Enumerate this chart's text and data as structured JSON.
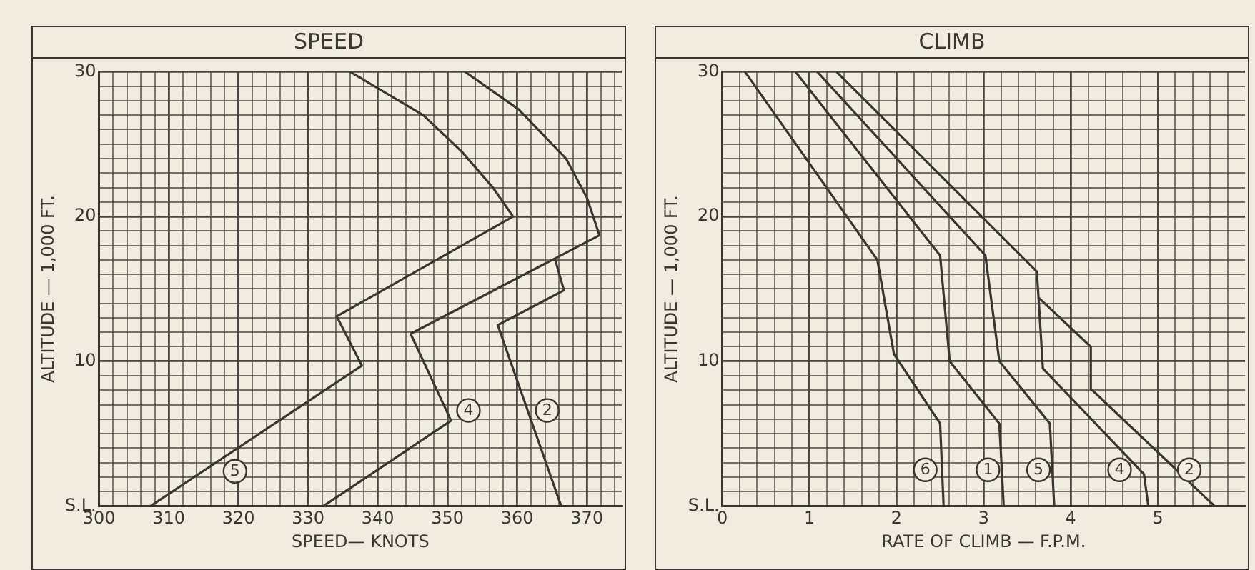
{
  "chart_data": [
    {
      "type": "line",
      "title": "SPEED",
      "xlabel": "SPEED— KNOTS",
      "ylabel": "ALTITUDE — 1,000 FT.",
      "marker": "none",
      "grid": true,
      "xlim": [
        300,
        375
      ],
      "ylim": [
        0,
        30
      ],
      "xticks": [
        300,
        {
          "value": 302,
          "label": null
        },
        {
          "value": 304,
          "label": null
        },
        {
          "value": 306,
          "label": null
        },
        {
          "value": 308,
          "label": null
        },
        310,
        {
          "value": 312,
          "label": null
        },
        {
          "value": 314,
          "label": null
        },
        {
          "value": 316,
          "label": null
        },
        {
          "value": 318,
          "label": null
        },
        320,
        {
          "value": 322,
          "label": null
        },
        {
          "value": 324,
          "label": null
        },
        {
          "value": 326,
          "label": null
        },
        {
          "value": 328,
          "label": null
        },
        330,
        {
          "value": 332,
          "label": null
        },
        {
          "value": 334,
          "label": null
        },
        {
          "value": 336,
          "label": null
        },
        {
          "value": 338,
          "label": null
        },
        340,
        {
          "value": 342,
          "label": null
        },
        {
          "value": 344,
          "label": null
        },
        {
          "value": 346,
          "label": null
        },
        {
          "value": 348,
          "label": null
        },
        350,
        {
          "value": 352,
          "label": null
        },
        {
          "value": 354,
          "label": null
        },
        {
          "value": 356,
          "label": null
        },
        {
          "value": 358,
          "label": null
        },
        360,
        {
          "value": 362,
          "label": null
        },
        {
          "value": 364,
          "label": null
        },
        {
          "value": 366,
          "label": null
        },
        {
          "value": 368,
          "label": null
        },
        370,
        {
          "value": 372,
          "label": null
        },
        {
          "value": 374,
          "label": null
        }
      ],
      "yticks": [
        {
          "value": 0,
          "label": "S.L."
        },
        {
          "value": 1,
          "label": null
        },
        {
          "value": 2,
          "label": null
        },
        {
          "value": 3,
          "label": null
        },
        {
          "value": 4,
          "label": null
        },
        {
          "value": 5,
          "label": null
        },
        {
          "value": 6,
          "label": null
        },
        {
          "value": 7,
          "label": null
        },
        {
          "value": 8,
          "label": null
        },
        {
          "value": 9,
          "label": null
        },
        10,
        {
          "value": 11,
          "label": null
        },
        {
          "value": 12,
          "label": null
        },
        {
          "value": 13,
          "label": null
        },
        {
          "value": 14,
          "label": null
        },
        {
          "value": 15,
          "label": null
        },
        {
          "value": 16,
          "label": null
        },
        {
          "value": 17,
          "label": null
        },
        {
          "value": 18,
          "label": null
        },
        {
          "value": 19,
          "label": null
        },
        20,
        {
          "value": 21,
          "label": null
        },
        {
          "value": 22,
          "label": null
        },
        {
          "value": 23,
          "label": null
        },
        {
          "value": 24,
          "label": null
        },
        {
          "value": 25,
          "label": null
        },
        {
          "value": 26,
          "label": null
        },
        {
          "value": 27,
          "label": null
        },
        {
          "value": 28,
          "label": null
        },
        {
          "value": 29,
          "label": null
        },
        30
      ],
      "series": [
        {
          "color": "#3a3530",
          "x": [
            307.4,
            337.7,
            334.1,
            359.4,
            356.5,
            352,
            346.5,
            336
          ],
          "values": [
            0,
            9.7,
            13.1,
            20,
            22,
            24.5,
            27,
            30
          ]
        },
        {
          "color": "#3a3530",
          "x": [
            332.2,
            350.5,
            344.7,
            371.8,
            370,
            367,
            360.2,
            352.5
          ],
          "values": [
            0,
            5.9,
            11.9,
            18.7,
            21.3,
            24,
            27.4,
            30
          ]
        },
        {
          "color": "#3a3530",
          "x": [
            366.3,
            357.2,
            366.7,
            365.4
          ],
          "values": [
            0,
            12.5,
            14.9,
            17.1
          ]
        }
      ],
      "annotations": [
        {
          "text": "5",
          "x": 319.5,
          "y": 2.4
        },
        {
          "text": "4",
          "x": 353,
          "y": 6.6
        },
        {
          "text": "2",
          "x": 364.3,
          "y": 6.6
        }
      ]
    },
    {
      "type": "line",
      "title": "CLIMB",
      "xlabel": "RATE OF CLIMB — F.P.M.",
      "ylabel": "ALTITUDE — 1,000 FT.",
      "marker": "none",
      "grid": true,
      "xlim": [
        0,
        6
      ],
      "ylim": [
        0,
        30
      ],
      "xticks": [
        0,
        {
          "value": 0.2,
          "label": null
        },
        {
          "value": 0.4,
          "label": null
        },
        {
          "value": 0.6,
          "label": null
        },
        {
          "value": 0.8,
          "label": null
        },
        1,
        {
          "value": 1.2,
          "label": null
        },
        {
          "value": 1.4,
          "label": null
        },
        {
          "value": 1.6,
          "label": null
        },
        {
          "value": 1.8,
          "label": null
        },
        2,
        {
          "value": 2.2,
          "label": null
        },
        {
          "value": 2.4,
          "label": null
        },
        {
          "value": 2.6,
          "label": null
        },
        {
          "value": 2.8,
          "label": null
        },
        3,
        {
          "value": 3.2,
          "label": null
        },
        {
          "value": 3.4,
          "label": null
        },
        {
          "value": 3.6,
          "label": null
        },
        {
          "value": 3.8,
          "label": null
        },
        4,
        {
          "value": 4.2,
          "label": null
        },
        {
          "value": 4.4,
          "label": null
        },
        {
          "value": 4.6,
          "label": null
        },
        {
          "value": 4.8,
          "label": null
        },
        5,
        {
          "value": 5.2,
          "label": null
        },
        {
          "value": 5.4,
          "label": null
        },
        {
          "value": 5.6,
          "label": null
        },
        {
          "value": 5.8,
          "label": null
        }
      ],
      "yticks": [
        {
          "value": 0,
          "label": "S.L."
        },
        {
          "value": 1,
          "label": null
        },
        {
          "value": 2,
          "label": null
        },
        {
          "value": 3,
          "label": null
        },
        {
          "value": 4,
          "label": null
        },
        {
          "value": 5,
          "label": null
        },
        {
          "value": 6,
          "label": null
        },
        {
          "value": 7,
          "label": null
        },
        {
          "value": 8,
          "label": null
        },
        {
          "value": 9,
          "label": null
        },
        10,
        {
          "value": 11,
          "label": null
        },
        {
          "value": 12,
          "label": null
        },
        {
          "value": 13,
          "label": null
        },
        {
          "value": 14,
          "label": null
        },
        {
          "value": 15,
          "label": null
        },
        {
          "value": 16,
          "label": null
        },
        {
          "value": 17,
          "label": null
        },
        {
          "value": 18,
          "label": null
        },
        {
          "value": 19,
          "label": null
        },
        20,
        {
          "value": 21,
          "label": null
        },
        {
          "value": 22,
          "label": null
        },
        {
          "value": 23,
          "label": null
        },
        {
          "value": 24,
          "label": null
        },
        {
          "value": 25,
          "label": null
        },
        {
          "value": 26,
          "label": null
        },
        {
          "value": 27,
          "label": null
        },
        {
          "value": 28,
          "label": null
        },
        {
          "value": 29,
          "label": null
        },
        30
      ],
      "series": [
        {
          "color": "#3a3530",
          "x": [
            0.26,
            1.78,
            1.97,
            2.5,
            2.54
          ],
          "values": [
            30,
            17,
            10.5,
            5.7,
            0
          ]
        },
        {
          "color": "#3a3530",
          "x": [
            0.84,
            2.5,
            2.61,
            3.18,
            3.23
          ],
          "values": [
            30,
            17.3,
            10,
            5.7,
            0
          ]
        },
        {
          "color": "#3a3530",
          "x": [
            1.09,
            3.02,
            3.18,
            3.76,
            3.81
          ],
          "values": [
            30,
            17.3,
            10,
            5.7,
            0
          ]
        },
        {
          "color": "#3a3530",
          "x": [
            1.31,
            3.61,
            3.63,
            3.68,
            4.84,
            4.89
          ],
          "values": [
            30,
            16.2,
            14.4,
            9.5,
            2.2,
            0
          ]
        },
        {
          "color": "#3a3530",
          "x": [
            3.63,
            4.23,
            4.23,
            5.65
          ],
          "values": [
            14.4,
            11,
            8.1,
            0
          ]
        }
      ],
      "annotations": [
        {
          "text": "6",
          "x": 2.33,
          "y": 2.5
        },
        {
          "text": "1",
          "x": 3.05,
          "y": 2.5
        },
        {
          "text": "5",
          "x": 3.63,
          "y": 2.5
        },
        {
          "text": "4",
          "x": 4.56,
          "y": 2.5
        },
        {
          "text": "2",
          "x": 5.36,
          "y": 2.5
        }
      ]
    }
  ]
}
